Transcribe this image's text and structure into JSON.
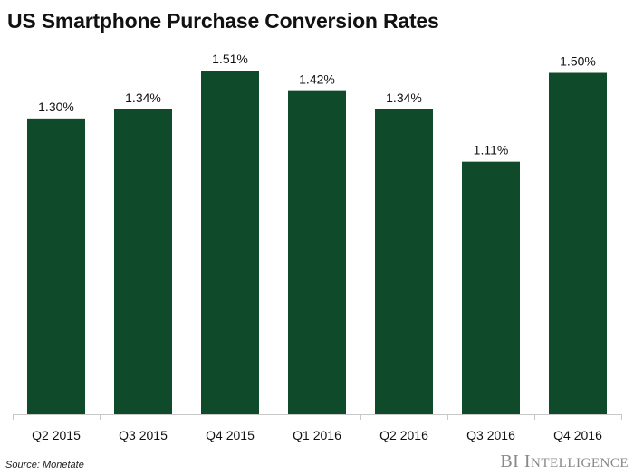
{
  "chart_data": {
    "type": "bar",
    "title": "US Smartphone Purchase Conversion Rates",
    "categories": [
      "Q2 2015",
      "Q3 2015",
      "Q4 2015",
      "Q1 2016",
      "Q2 2016",
      "Q3 2016",
      "Q4 2016"
    ],
    "values": [
      1.3,
      1.34,
      1.51,
      1.42,
      1.34,
      1.11,
      1.5
    ],
    "data_labels": [
      "1.30%",
      "1.34%",
      "1.51%",
      "1.42%",
      "1.34%",
      "1.11%",
      "1.50%"
    ],
    "xlabel": "",
    "ylabel": "",
    "ylim": [
      0,
      1.6
    ],
    "grid": false,
    "legend": "none",
    "bar_color": "#0f4a2a"
  },
  "footer": {
    "source": "Source: Monetate",
    "logo": "BI INTELLIGENCE"
  }
}
